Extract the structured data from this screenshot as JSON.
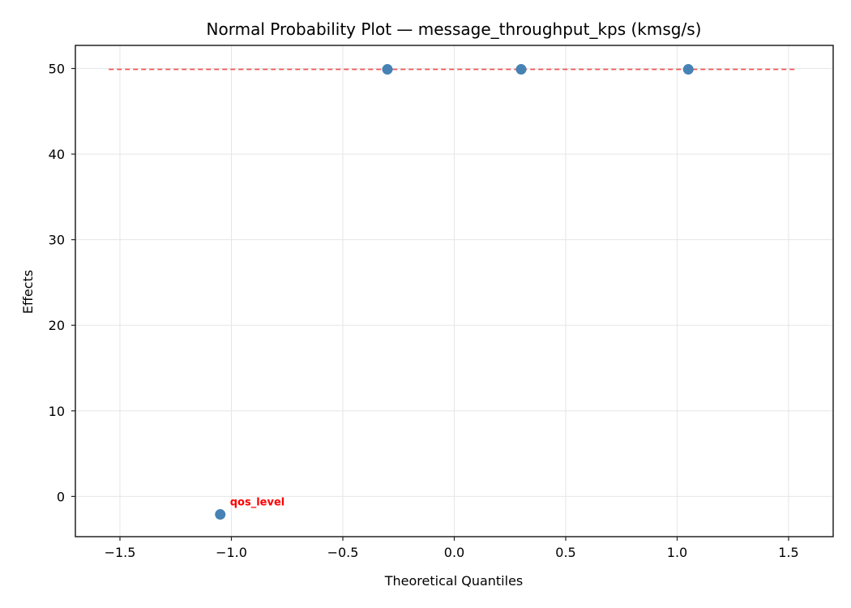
{
  "chart_data": {
    "type": "scatter",
    "title": "Normal Probability Plot — message_throughput_kps (kmsg/s)",
    "xlabel": "Theoretical Quantiles",
    "ylabel": "Effects",
    "xlim": [
      -1.7,
      1.7
    ],
    "ylim": [
      -4.7,
      52.7
    ],
    "grid": true,
    "x_ticks": [
      -1.5,
      -1.0,
      -0.5,
      0.0,
      0.5,
      1.0,
      1.5
    ],
    "x_tick_labels": [
      "−1.5",
      "−1.0",
      "−0.5",
      "0.0",
      "0.5",
      "1.0",
      "1.5"
    ],
    "y_ticks": [
      0,
      10,
      20,
      30,
      40,
      50
    ],
    "y_tick_labels": [
      "0",
      "10",
      "20",
      "30",
      "40",
      "50"
    ],
    "points": [
      {
        "x": -1.05,
        "y": -2.1,
        "label": "qos_level"
      },
      {
        "x": -0.3,
        "y": 49.9
      },
      {
        "x": 0.3,
        "y": 49.9
      },
      {
        "x": 1.05,
        "y": 49.9
      }
    ],
    "reference_line": {
      "x": [
        -1.55,
        1.54
      ],
      "y": [
        49.9,
        49.9
      ],
      "style": "dashed",
      "color": "#f05050"
    },
    "annotations": [
      {
        "text": "qos_level",
        "x": -1.05,
        "y": -2.1,
        "color": "#ff0000"
      }
    ],
    "colors": {
      "marker": "#4682b4",
      "reference_line": "#f05050",
      "annotation": "#ff0000",
      "grid": "#e6e6e6"
    }
  }
}
